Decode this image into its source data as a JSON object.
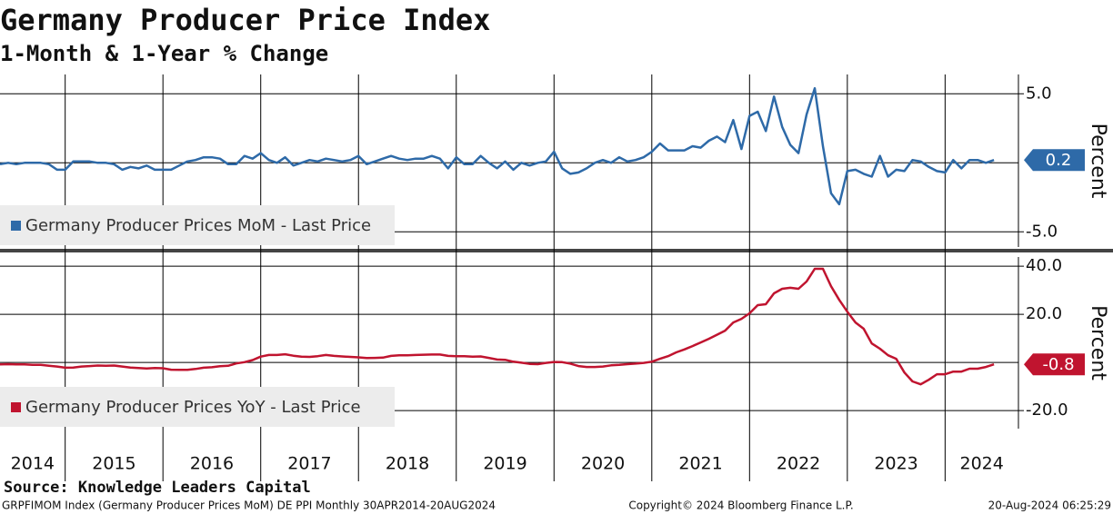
{
  "chart_data": {
    "type": "line",
    "title": "Germany Producer Price Index",
    "subtitle": "1-Month & 1-Year % Change",
    "source": "Source: Knowledge Leaders Capital",
    "footer_left": "GRPFIMOM Index (Germany Producer Prices MoM) DE PPI  Monthly 30APR2014-20AUG2024",
    "footer_center": "Copyright© 2024 Bloomberg Finance L.P.",
    "footer_right": "20-Aug-2024 06:25:29",
    "xlim": [
      "2014-05",
      "2024-10"
    ],
    "years": [
      2014,
      2015,
      2016,
      2017,
      2018,
      2019,
      2020,
      2021,
      2022,
      2023,
      2024
    ],
    "x": [
      "2014-05",
      "2014-06",
      "2014-07",
      "2014-08",
      "2014-09",
      "2014-10",
      "2014-11",
      "2014-12",
      "2015-01",
      "2015-02",
      "2015-03",
      "2015-04",
      "2015-05",
      "2015-06",
      "2015-07",
      "2015-08",
      "2015-09",
      "2015-10",
      "2015-11",
      "2015-12",
      "2016-01",
      "2016-02",
      "2016-03",
      "2016-04",
      "2016-05",
      "2016-06",
      "2016-07",
      "2016-08",
      "2016-09",
      "2016-10",
      "2016-11",
      "2016-12",
      "2017-01",
      "2017-02",
      "2017-03",
      "2017-04",
      "2017-05",
      "2017-06",
      "2017-07",
      "2017-08",
      "2017-09",
      "2017-10",
      "2017-11",
      "2017-12",
      "2018-01",
      "2018-02",
      "2018-03",
      "2018-04",
      "2018-05",
      "2018-06",
      "2018-07",
      "2018-08",
      "2018-09",
      "2018-10",
      "2018-11",
      "2018-12",
      "2019-01",
      "2019-02",
      "2019-03",
      "2019-04",
      "2019-05",
      "2019-06",
      "2019-07",
      "2019-08",
      "2019-09",
      "2019-10",
      "2019-11",
      "2019-12",
      "2020-01",
      "2020-02",
      "2020-03",
      "2020-04",
      "2020-05",
      "2020-06",
      "2020-07",
      "2020-08",
      "2020-09",
      "2020-10",
      "2020-11",
      "2020-12",
      "2021-01",
      "2021-02",
      "2021-03",
      "2021-04",
      "2021-05",
      "2021-06",
      "2021-07",
      "2021-08",
      "2021-09",
      "2021-10",
      "2021-11",
      "2021-12",
      "2022-01",
      "2022-02",
      "2022-03",
      "2022-04",
      "2022-05",
      "2022-06",
      "2022-07",
      "2022-08",
      "2022-09",
      "2022-10",
      "2022-11",
      "2022-12",
      "2023-01",
      "2023-02",
      "2023-03",
      "2023-04",
      "2023-05",
      "2023-06",
      "2023-07",
      "2023-08",
      "2023-09",
      "2023-10",
      "2023-11",
      "2023-12",
      "2024-01",
      "2024-02",
      "2024-03",
      "2024-04",
      "2024-05",
      "2024-06",
      "2024-07"
    ],
    "series": [
      {
        "name": "Germany Producer Prices MoM - Last Price",
        "color": "#2e6aa8",
        "axis_label": "Percent",
        "ylim": [
          -6.1,
          6.4
        ],
        "yticks": [
          {
            "value": 5,
            "label": "5.0"
          },
          {
            "value": -5,
            "label": "-5.0"
          }
        ],
        "zero_line": true,
        "last_price": 0.2,
        "values": [
          -0.1,
          0.0,
          -0.1,
          0.0,
          0.0,
          0.0,
          -0.1,
          -0.5,
          -0.5,
          0.1,
          0.1,
          0.1,
          0.0,
          0.0,
          -0.1,
          -0.5,
          -0.3,
          -0.4,
          -0.2,
          -0.5,
          -0.5,
          -0.5,
          -0.2,
          0.1,
          0.2,
          0.4,
          0.4,
          0.3,
          -0.1,
          -0.1,
          0.5,
          0.3,
          0.7,
          0.2,
          0.0,
          0.4,
          -0.2,
          0.0,
          0.2,
          0.1,
          0.3,
          0.2,
          0.1,
          0.2,
          0.5,
          -0.1,
          0.1,
          0.3,
          0.5,
          0.3,
          0.2,
          0.3,
          0.3,
          0.5,
          0.3,
          -0.4,
          0.4,
          -0.1,
          -0.1,
          0.5,
          0.0,
          -0.4,
          0.1,
          -0.5,
          0.0,
          -0.2,
          0.0,
          0.1,
          0.8,
          -0.4,
          -0.8,
          -0.7,
          -0.4,
          0.0,
          0.2,
          0.0,
          0.4,
          0.1,
          0.2,
          0.4,
          0.8,
          1.4,
          0.9,
          0.9,
          0.9,
          1.2,
          1.1,
          1.6,
          1.9,
          1.5,
          3.1,
          1.0,
          3.4,
          3.7,
          2.3,
          4.8,
          2.6,
          1.3,
          0.7,
          3.5,
          5.4,
          1.2,
          -2.2,
          -3.0,
          -0.6,
          -0.5,
          -0.8,
          -1.0,
          0.5,
          -1.0,
          -0.5,
          -0.6,
          0.2,
          0.1,
          -0.3,
          -0.6,
          -0.7,
          0.2,
          -0.4,
          0.2,
          0.2,
          0.0,
          0.2
        ]
      },
      {
        "name": "Germany Producer Prices YoY - Last Price",
        "color": "#c0142f",
        "axis_label": "Percent",
        "ylim": [
          -27.5,
          43.8
        ],
        "yticks": [
          {
            "value": 40,
            "label": "40.0"
          },
          {
            "value": 20,
            "label": "20.0"
          },
          {
            "value": -20,
            "label": "-20.0"
          }
        ],
        "zero_line": true,
        "last_price": -0.8,
        "values": [
          -0.8,
          -0.7,
          -0.8,
          -0.8,
          -1.0,
          -1.0,
          -1.4,
          -1.7,
          -2.2,
          -2.1,
          -1.7,
          -1.5,
          -1.3,
          -1.4,
          -1.3,
          -1.7,
          -2.1,
          -2.3,
          -2.5,
          -2.3,
          -2.4,
          -3.0,
          -3.1,
          -3.1,
          -2.7,
          -2.2,
          -2.0,
          -1.6,
          -1.4,
          -0.4,
          0.1,
          1.0,
          2.4,
          3.1,
          3.1,
          3.4,
          2.8,
          2.4,
          2.3,
          2.6,
          3.1,
          2.7,
          2.5,
          2.3,
          2.1,
          1.8,
          1.9,
          2.0,
          2.7,
          3.0,
          3.0,
          3.1,
          3.2,
          3.3,
          3.3,
          2.7,
          2.6,
          2.6,
          2.4,
          2.5,
          1.9,
          1.2,
          1.1,
          0.3,
          -0.1,
          -0.6,
          -0.7,
          -0.2,
          0.2,
          0.1,
          -0.5,
          -1.5,
          -1.9,
          -1.9,
          -1.7,
          -1.2,
          -1.0,
          -0.7,
          -0.5,
          -0.2,
          0.3,
          1.5,
          2.6,
          4.2,
          5.4,
          6.8,
          8.3,
          9.8,
          11.5,
          13.2,
          16.6,
          18.1,
          20.4,
          23.8,
          24.2,
          28.7,
          30.6,
          31.0,
          30.6,
          33.6,
          38.9,
          38.9,
          31.7,
          26.0,
          21.1,
          16.6,
          14.0,
          7.9,
          5.7,
          3.0,
          1.5,
          -4.2,
          -7.9,
          -9.1,
          -7.2,
          -4.9,
          -4.9,
          -3.8,
          -3.8,
          -2.6,
          -2.6,
          -1.9,
          -0.8
        ]
      }
    ]
  }
}
